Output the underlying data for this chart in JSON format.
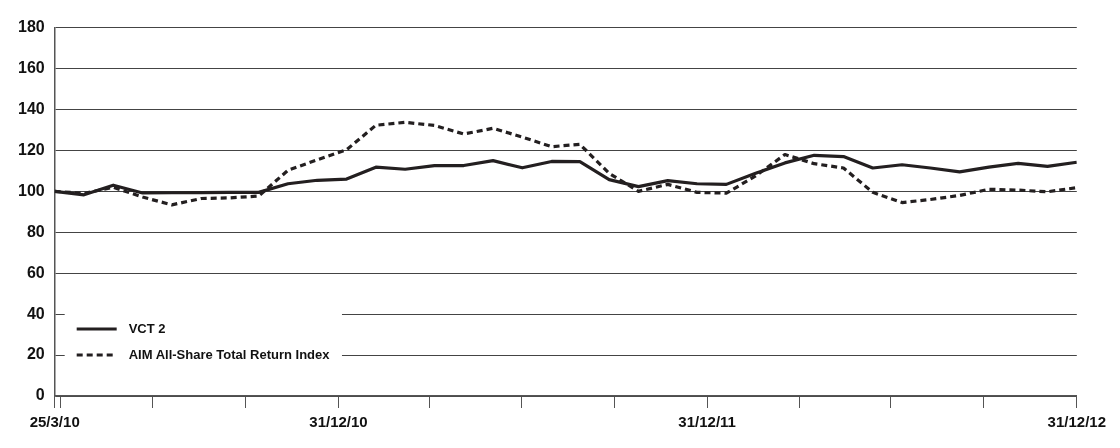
{
  "chart_data": {
    "type": "line",
    "x": [
      "2010-03-25",
      "2010-04-23",
      "2010-05-22",
      "2010-06-20",
      "2010-07-19",
      "2010-08-17",
      "2010-09-14",
      "2010-10-13",
      "2010-11-11",
      "2010-12-10",
      "2011-01-08",
      "2011-02-06",
      "2011-03-07",
      "2011-04-05",
      "2011-05-04",
      "2011-06-02",
      "2011-07-01",
      "2011-07-30",
      "2011-08-27",
      "2011-09-25",
      "2011-10-24",
      "2011-11-22",
      "2011-12-21",
      "2012-01-19",
      "2012-02-17",
      "2012-03-17",
      "2012-04-15",
      "2012-05-14",
      "2012-06-12",
      "2012-07-11",
      "2012-08-08",
      "2012-09-06",
      "2012-10-05",
      "2012-11-03",
      "2012-12-02",
      "2012-12-31"
    ],
    "series": [
      {
        "name": "VCT 2",
        "color": "#231f20",
        "line_style": "solid",
        "values": [
          100,
          98.3,
          103,
          99.2,
          99.3,
          99.4,
          99.5,
          99.5,
          103.7,
          105.4,
          106,
          111.8,
          110.8,
          112.6,
          112.6,
          115,
          111.5,
          114.6,
          114.5,
          105.7,
          102.3,
          105.2,
          103.7,
          103.4,
          108.8,
          113.9,
          117.6,
          117,
          111.4,
          113,
          111.4,
          109.5,
          111.8,
          113.7,
          112.2,
          114.2
        ]
      },
      {
        "name": "AIM All-Share Total Return Index",
        "color": "#231f20",
        "line_style": "dashed",
        "values": [
          100,
          99,
          102,
          97.2,
          93.4,
          96.5,
          96.8,
          97.7,
          110.3,
          115.4,
          120.3,
          132.3,
          133.7,
          132.2,
          128,
          130.8,
          126.5,
          121.8,
          123,
          108.8,
          100,
          103.4,
          99.5,
          99.1,
          107.5,
          118,
          113.5,
          111.4,
          99.5,
          94.5,
          96,
          98,
          101,
          100.6,
          99.8,
          101.8
        ]
      }
    ],
    "xlim": [
      "2010-03-25",
      "2012-12-31"
    ],
    "xticks": [
      {
        "value": "2010-03-25",
        "label": "25/3/10"
      },
      {
        "value": "2010-03-31",
        "label": null
      },
      {
        "value": "2010-06-30",
        "label": null
      },
      {
        "value": "2010-09-30",
        "label": null
      },
      {
        "value": "2010-12-31",
        "label": "31/12/10"
      },
      {
        "value": "2011-03-31",
        "label": null
      },
      {
        "value": "2011-06-30",
        "label": null
      },
      {
        "value": "2011-09-30",
        "label": null
      },
      {
        "value": "2011-12-31",
        "label": "31/12/11"
      },
      {
        "value": "2012-03-31",
        "label": null
      },
      {
        "value": "2012-06-30",
        "label": null
      },
      {
        "value": "2012-09-30",
        "label": null
      },
      {
        "value": "2012-12-31",
        "label": "31/12/12"
      }
    ],
    "ylim": [
      0,
      180
    ],
    "yticks": [
      0,
      20,
      40,
      60,
      80,
      100,
      120,
      140,
      160,
      180
    ],
    "grid": "y",
    "legend": "bottom left",
    "marker": "none"
  }
}
